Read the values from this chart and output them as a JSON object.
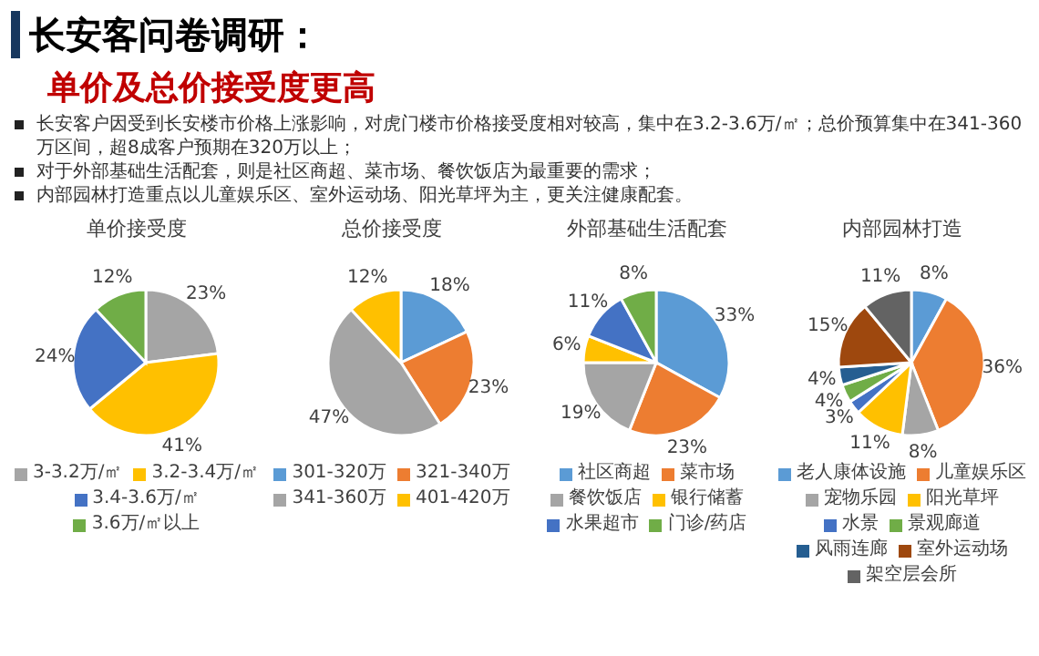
{
  "chart_data": [
    {
      "type": "other",
      "title": "长安客问卷调研：",
      "subtitle": "单价及总价接受度更高",
      "annotations": [
        "长安客户因受到长安楼市价格上涨影响，对虎门楼市价格接受度相对较高，集中在3.2-3.6万/㎡；总价预算集中在341-360万区间，超8成客户预期在320万以上；",
        "对于外部基础生活配套，则是社区商超、菜市场、餐饮饭店为最重要的需求；",
        "内部园林打造重点以儿童娱乐区、室外运动场、阳光草坪为主，更关注健康配套。"
      ]
    },
    {
      "type": "pie",
      "title": "单价接受度",
      "legend": "bottom",
      "categories": [
        "3-3.2万/㎡",
        "3.2-3.4万/㎡",
        "3.4-3.6万/㎡",
        "3.6万/㎡以上"
      ],
      "values": [
        23,
        41,
        24,
        12
      ],
      "value_labels": [
        "23%",
        "41%",
        "24%",
        "12%"
      ],
      "colors": [
        "#a5a5a5",
        "#ffc000",
        "#4472c4",
        "#70ad47"
      ]
    },
    {
      "type": "pie",
      "title": "总价接受度",
      "legend": "bottom",
      "categories": [
        "301-320万",
        "321-340万",
        "341-360万",
        "401-420万"
      ],
      "values": [
        18,
        23,
        47,
        12
      ],
      "value_labels": [
        "18%",
        "23%",
        "47%",
        "12%"
      ],
      "colors": [
        "#5b9bd5",
        "#ed7d31",
        "#a5a5a5",
        "#ffc000"
      ]
    },
    {
      "type": "pie",
      "title": "外部基础生活配套",
      "legend": "bottom",
      "categories": [
        "社区商超",
        "菜市场",
        "餐饮饭店",
        "银行储蓄",
        "水果超市",
        "门诊/药店"
      ],
      "values": [
        33,
        23,
        19,
        6,
        11,
        8
      ],
      "value_labels": [
        "33%",
        "23%",
        "19%",
        "6%",
        "11%",
        "8%"
      ],
      "colors": [
        "#5b9bd5",
        "#ed7d31",
        "#a5a5a5",
        "#ffc000",
        "#4472c4",
        "#70ad47"
      ]
    },
    {
      "type": "pie",
      "title": "内部园林打造",
      "legend": "bottom",
      "categories": [
        "老人康体设施",
        "儿童娱乐区",
        "宠物乐园",
        "阳光草坪",
        "水景",
        "景观廊道",
        "风雨连廊",
        "室外运动场",
        "架空层会所"
      ],
      "values": [
        8,
        36,
        8,
        11,
        3,
        4,
        4,
        15,
        11
      ],
      "value_labels": [
        "8%",
        "36%",
        "8%",
        "11%",
        "3%",
        "4%",
        "4%",
        "15%",
        "11%"
      ],
      "colors": [
        "#5b9bd5",
        "#ed7d31",
        "#a5a5a5",
        "#ffc000",
        "#4472c4",
        "#70ad47",
        "#255e91",
        "#9e480e",
        "#636363"
      ]
    }
  ]
}
